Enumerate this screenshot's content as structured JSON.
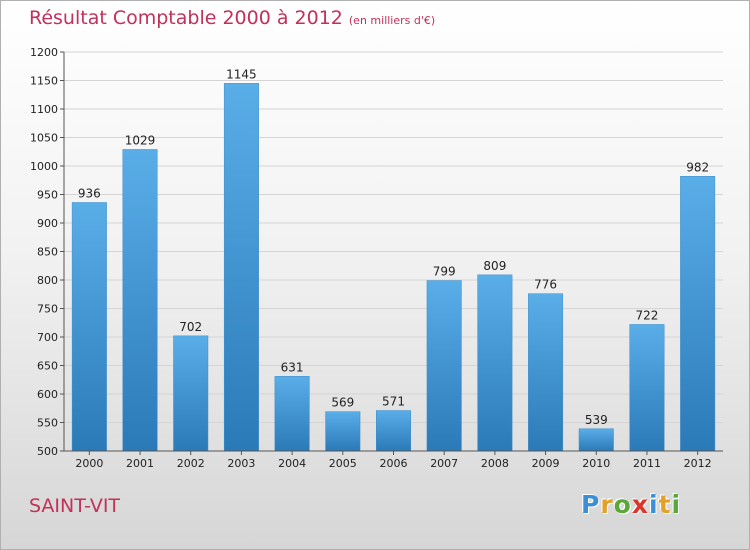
{
  "header": {
    "title": "Résultat Comptable 2000 à 2012",
    "subtitle": "(en milliers d'€)"
  },
  "footer": {
    "city": "SAINT-VIT",
    "logo_letters": [
      "P",
      "r",
      "o",
      "x",
      "i",
      "t",
      "i"
    ],
    "logo_colors": [
      "#3a8fd6",
      "#e2a12a",
      "#5aa83a",
      "#d9352a",
      "#3a8fd6",
      "#e2a12a",
      "#5aa83a"
    ]
  },
  "colors": {
    "bar_top": "#5aaee8",
    "bar_bottom": "#2a7ab8",
    "title": "#c3305a"
  },
  "chart_data": {
    "type": "bar",
    "title": "Résultat Comptable 2000 à 2012",
    "xlabel": "",
    "ylabel": "",
    "categories": [
      "2000",
      "2001",
      "2002",
      "2003",
      "2004",
      "2005",
      "2006",
      "2007",
      "2008",
      "2009",
      "2010",
      "2011",
      "2012"
    ],
    "values": [
      936,
      1029,
      702,
      1145,
      631,
      569,
      571,
      799,
      809,
      776,
      539,
      722,
      982
    ],
    "ylim": [
      500,
      1200
    ],
    "yticks": [
      500,
      550,
      600,
      650,
      700,
      750,
      800,
      850,
      900,
      950,
      1000,
      1050,
      1100,
      1150,
      1200
    ],
    "grid": true,
    "legend": "none"
  }
}
